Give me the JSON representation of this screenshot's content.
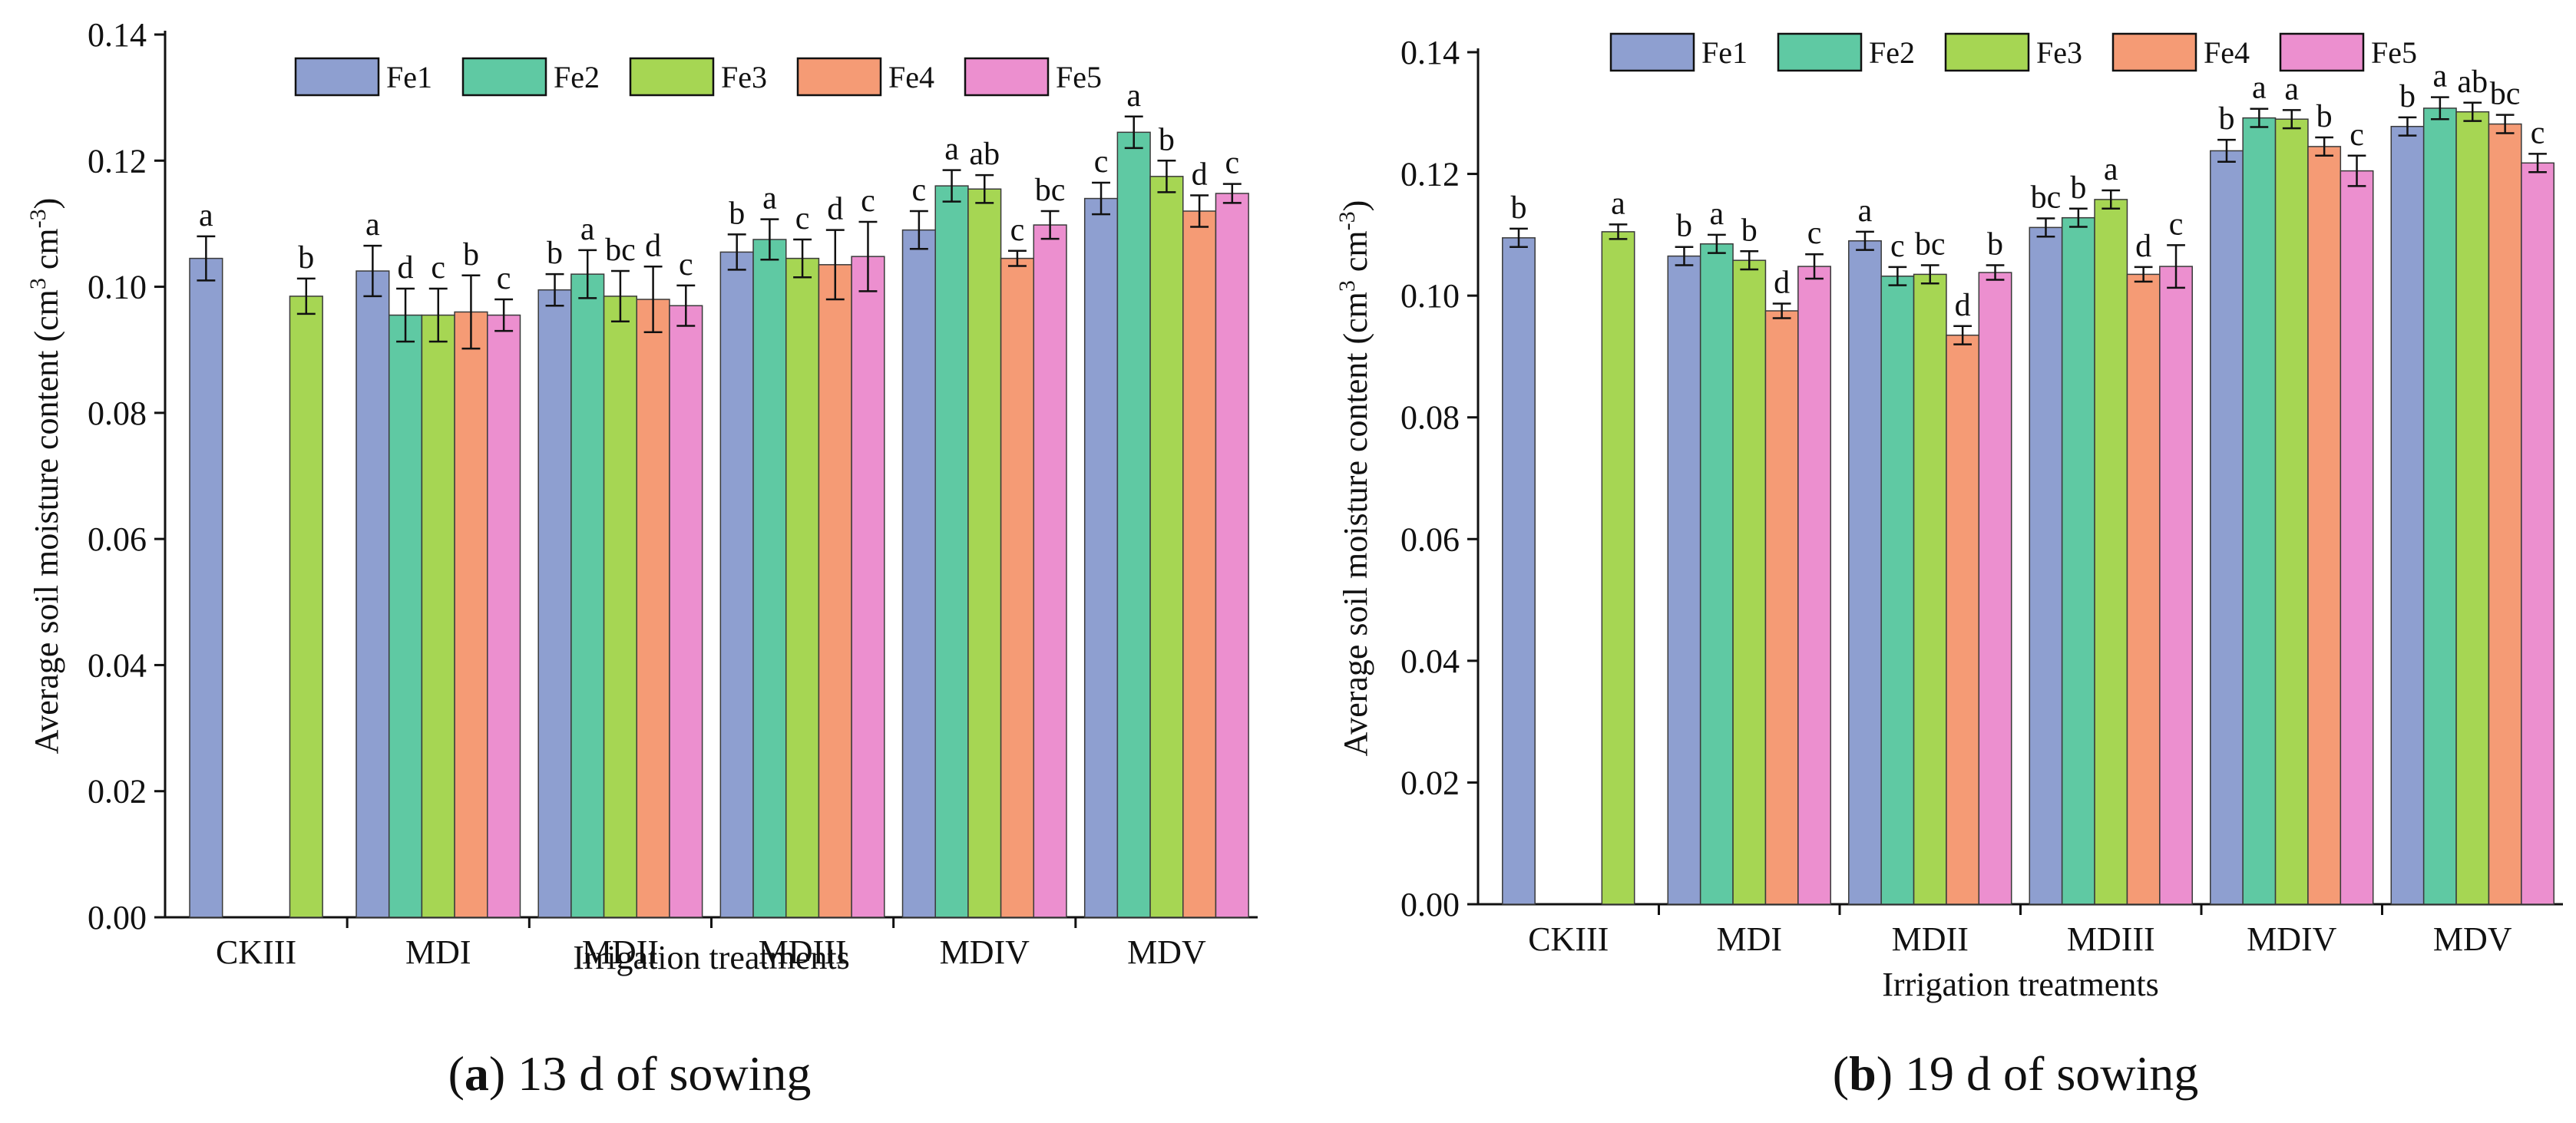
{
  "chart_data": [
    {
      "type": "bar",
      "panel_label": "a",
      "caption": "13 d of sowing",
      "xlabel": "Irrigation treatments",
      "ylabel_main": "Average soil moisture content (cm",
      "ylabel_sup1": "3",
      "ylabel_mid": " cm",
      "ylabel_sup2": "-3",
      "ylabel_end": ")",
      "ylim": [
        0,
        0.14
      ],
      "yticks": [
        "0.00",
        "0.02",
        "0.04",
        "0.06",
        "0.08",
        "0.10",
        "0.12",
        "0.14"
      ],
      "legend_position": "top",
      "categories": [
        "CKIII",
        "MDI",
        "MDII",
        "MDIII",
        "MDIV",
        "MDV"
      ],
      "series": [
        {
          "name": "Fe1",
          "color": "#8e9fd0",
          "values": [
            0.1045,
            0.1025,
            0.0995,
            0.1055,
            0.109,
            0.114
          ],
          "errors": [
            0.0035,
            0.004,
            0.0025,
            0.0028,
            0.003,
            0.0025
          ],
          "labels": [
            "a",
            "a",
            "b",
            "b",
            "c",
            "c"
          ]
        },
        {
          "name": "Fe2",
          "color": "#5fc9a3",
          "values": [
            null,
            0.0955,
            0.102,
            0.1075,
            0.116,
            0.1245
          ],
          "errors": [
            null,
            0.0042,
            0.0038,
            0.0032,
            0.0025,
            0.0025
          ],
          "labels": [
            null,
            "d",
            "a",
            "a",
            "a",
            "a"
          ]
        },
        {
          "name": "Fe3",
          "color": "#a6d653",
          "values": [
            0.0985,
            0.0955,
            0.0985,
            0.1045,
            0.1155,
            0.1175
          ],
          "errors": [
            0.0028,
            0.0042,
            0.004,
            0.003,
            0.0022,
            0.0025
          ],
          "labels": [
            "b",
            "c",
            "bc",
            "c",
            "ab",
            "b"
          ]
        },
        {
          "name": "Fe4",
          "color": "#f59b75",
          "values": [
            null,
            0.096,
            0.098,
            0.1035,
            0.1045,
            0.112
          ],
          "errors": [
            null,
            0.0058,
            0.0052,
            0.0055,
            0.0012,
            0.0025
          ],
          "labels": [
            null,
            "b",
            "d",
            "d",
            "c",
            "d"
          ]
        },
        {
          "name": "Fe5",
          "color": "#ec8fcf",
          "values": [
            null,
            0.0955,
            0.097,
            0.1048,
            0.1098,
            0.1148
          ],
          "errors": [
            null,
            0.0025,
            0.0032,
            0.0055,
            0.0022,
            0.0015
          ],
          "labels": [
            null,
            "c",
            "c",
            "c",
            "bc",
            "c"
          ]
        }
      ]
    },
    {
      "type": "bar",
      "panel_label": "b",
      "caption": "19 d of sowing",
      "xlabel": "Irrigation treatments",
      "ylabel_main": "Average soil moisture content (cm",
      "ylabel_sup1": "3",
      "ylabel_mid": " cm",
      "ylabel_sup2": "-3",
      "ylabel_end": ")",
      "ylim": [
        0,
        0.14
      ],
      "yticks": [
        "0.00",
        "0.02",
        "0.04",
        "0.06",
        "0.08",
        "0.10",
        "0.12",
        "0.14"
      ],
      "legend_position": "top",
      "categories": [
        "CKIII",
        "MDI",
        "MDII",
        "MDIII",
        "MDIV",
        "MDV"
      ],
      "series": [
        {
          "name": "Fe1",
          "color": "#8e9fd0",
          "values": [
            0.1095,
            0.1065,
            0.109,
            0.1112,
            0.1238,
            0.1278
          ],
          "errors": [
            0.0015,
            0.0015,
            0.0015,
            0.0015,
            0.0018,
            0.0015
          ],
          "labels": [
            "b",
            "b",
            "a",
            "bc",
            "b",
            "b"
          ]
        },
        {
          "name": "Fe2",
          "color": "#5fc9a3",
          "values": [
            null,
            0.1085,
            0.1032,
            0.1128,
            0.1292,
            0.1308
          ],
          "errors": [
            null,
            0.0015,
            0.0015,
            0.0015,
            0.0015,
            0.0018
          ],
          "labels": [
            null,
            "a",
            "c",
            "b",
            "a",
            "a"
          ]
        },
        {
          "name": "Fe3",
          "color": "#a6d653",
          "values": [
            0.1105,
            0.1058,
            0.1035,
            0.1158,
            0.129,
            0.1302
          ],
          "errors": [
            0.0012,
            0.0015,
            0.0015,
            0.0015,
            0.0015,
            0.0015
          ],
          "labels": [
            "a",
            "b",
            "bc",
            "a",
            "a",
            "ab"
          ]
        },
        {
          "name": "Fe4",
          "color": "#f59b75",
          "values": [
            null,
            0.0975,
            0.0935,
            0.1035,
            0.1245,
            0.1282
          ],
          "errors": [
            null,
            0.0012,
            0.0015,
            0.0012,
            0.0015,
            0.0015
          ],
          "labels": [
            null,
            "d",
            "d",
            "d",
            "b",
            "bc"
          ]
        },
        {
          "name": "Fe5",
          "color": "#ec8fcf",
          "values": [
            null,
            0.1048,
            0.1038,
            0.1048,
            0.1205,
            0.1218
          ],
          "errors": [
            null,
            0.002,
            0.0012,
            0.0035,
            0.0025,
            0.0015
          ],
          "labels": [
            null,
            "c",
            "b",
            "c",
            "c",
            "c"
          ]
        }
      ]
    }
  ]
}
